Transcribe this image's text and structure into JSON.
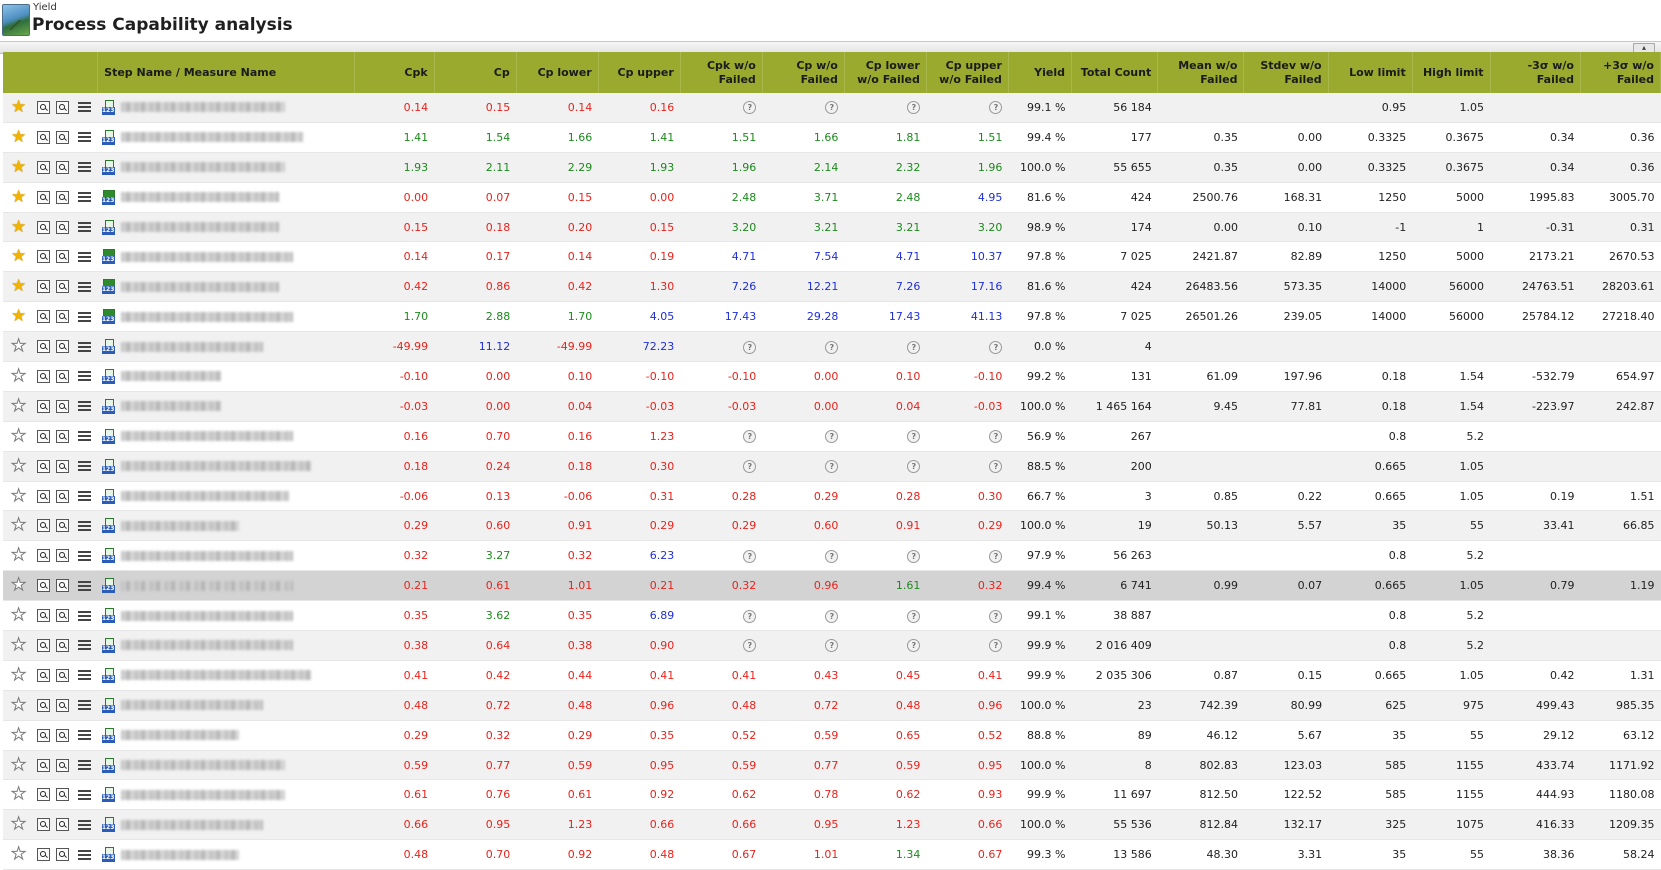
{
  "header": {
    "breadcrumb": "Yield",
    "title": "Process Capability analysis",
    "collapse_label": "▴"
  },
  "columns": [
    "",
    "Step Name / Measure Name",
    "Cpk",
    "Cp",
    "Cp lower",
    "Cp upper",
    "Cpk w/o Failed",
    "Cp w/o Failed",
    "Cp lower w/o Failed",
    "Cp upper w/o Failed",
    "Yield",
    "Total Count",
    "Mean w/o Failed",
    "Stdev w/o Failed",
    "Low limit",
    "High limit",
    "-3σ w/o Failed",
    "+3σ w/o Failed"
  ],
  "colors": {
    "red": "#e8231c",
    "green": "#1c8a1c",
    "blue": "#1f2fd6",
    "header_bg": "#9aaa2e"
  },
  "rows": [
    {
      "fav": true,
      "type": "num",
      "w": 164,
      "cells": [
        "0.14",
        "0.15",
        "0.14",
        "0.16",
        "?",
        "?",
        "?",
        "?",
        "99.1 %",
        "56 184",
        "",
        "",
        "0.95",
        "1.05",
        "",
        ""
      ],
      "c": "rrrr????kkkkkkkk"
    },
    {
      "fav": true,
      "type": "num",
      "w": 182,
      "cells": [
        "1.41",
        "1.54",
        "1.66",
        "1.41",
        "1.51",
        "1.66",
        "1.81",
        "1.51",
        "99.4 %",
        "177",
        "0.35",
        "0.00",
        "0.3325",
        "0.3675",
        "0.34",
        "0.36"
      ],
      "c": "ggggggggkkkkkkkk"
    },
    {
      "fav": true,
      "type": "num",
      "w": 164,
      "cells": [
        "1.93",
        "2.11",
        "2.29",
        "1.93",
        "1.96",
        "2.14",
        "2.32",
        "1.96",
        "100.0 %",
        "55 655",
        "0.35",
        "0.00",
        "0.3325",
        "0.3675",
        "0.34",
        "0.36"
      ],
      "c": "ggggggggkkkkkkkk"
    },
    {
      "fav": true,
      "type": "pf",
      "w": 158,
      "cells": [
        "0.00",
        "0.07",
        "0.15",
        "0.00",
        "2.48",
        "3.71",
        "2.48",
        "4.95",
        "81.6 %",
        "424",
        "2500.76",
        "168.31",
        "1250",
        "5000",
        "1995.83",
        "3005.70"
      ],
      "c": "rrrrgggbkkkkkkkk"
    },
    {
      "fav": true,
      "type": "num",
      "w": 158,
      "cells": [
        "0.15",
        "0.18",
        "0.20",
        "0.15",
        "3.20",
        "3.21",
        "3.21",
        "3.20",
        "98.9 %",
        "174",
        "0.00",
        "0.10",
        "-1",
        "1",
        "-0.31",
        "0.31"
      ],
      "c": "rrrrggggkkkkkkkk"
    },
    {
      "fav": true,
      "type": "pf",
      "w": 172,
      "cells": [
        "0.14",
        "0.17",
        "0.14",
        "0.19",
        "4.71",
        "7.54",
        "4.71",
        "10.37",
        "97.8 %",
        "7 025",
        "2421.87",
        "82.89",
        "1250",
        "5000",
        "2173.21",
        "2670.53"
      ],
      "c": "rrrrbbbbkkkkkkkk"
    },
    {
      "fav": true,
      "type": "pf",
      "w": 158,
      "cells": [
        "0.42",
        "0.86",
        "0.42",
        "1.30",
        "7.26",
        "12.21",
        "7.26",
        "17.16",
        "81.6 %",
        "424",
        "26483.56",
        "573.35",
        "14000",
        "56000",
        "24763.51",
        "28203.61"
      ],
      "c": "rrrrbbbbkkkkkkkk"
    },
    {
      "fav": true,
      "type": "pf",
      "w": 172,
      "cells": [
        "1.70",
        "2.88",
        "1.70",
        "4.05",
        "17.43",
        "29.28",
        "17.43",
        "41.13",
        "97.8 %",
        "7 025",
        "26501.26",
        "239.05",
        "14000",
        "56000",
        "25784.12",
        "27218.40"
      ],
      "c": "gggbbbbbkkkkkkkk"
    },
    {
      "fav": false,
      "type": "num",
      "w": 142,
      "cells": [
        "-49.99",
        "11.12",
        "-49.99",
        "72.23",
        "?",
        "?",
        "?",
        "?",
        "0.0 %",
        "4",
        "",
        "",
        "",
        "",
        "",
        ""
      ],
      "c": "rbrb????kkkkkkkk"
    },
    {
      "fav": false,
      "type": "num",
      "w": 100,
      "cells": [
        "-0.10",
        "0.00",
        "0.10",
        "-0.10",
        "-0.10",
        "0.00",
        "0.10",
        "-0.10",
        "99.2 %",
        "131",
        "61.09",
        "197.96",
        "0.18",
        "1.54",
        "-532.79",
        "654.97"
      ],
      "c": "rrrrrrrrkkkkkkkk"
    },
    {
      "fav": false,
      "type": "num",
      "w": 100,
      "cells": [
        "-0.03",
        "0.00",
        "0.04",
        "-0.03",
        "-0.03",
        "0.00",
        "0.04",
        "-0.03",
        "100.0 %",
        "1 465 164",
        "9.45",
        "77.81",
        "0.18",
        "1.54",
        "-223.97",
        "242.87"
      ],
      "c": "rrrrrrrrkkkkkkkk"
    },
    {
      "fav": false,
      "type": "num",
      "w": 172,
      "cells": [
        "0.16",
        "0.70",
        "0.16",
        "1.23",
        "?",
        "?",
        "?",
        "?",
        "56.9 %",
        "267",
        "",
        "",
        "0.8",
        "5.2",
        "",
        ""
      ],
      "c": "rrrr????kkkkkkkk"
    },
    {
      "fav": false,
      "type": "num",
      "w": 190,
      "cells": [
        "0.18",
        "0.24",
        "0.18",
        "0.30",
        "?",
        "?",
        "?",
        "?",
        "88.5 %",
        "200",
        "",
        "",
        "0.665",
        "1.05",
        "",
        ""
      ],
      "c": "rrrr????kkkkkkkk"
    },
    {
      "fav": false,
      "type": "num",
      "w": 168,
      "cells": [
        "-0.06",
        "0.13",
        "-0.06",
        "0.31",
        "0.28",
        "0.29",
        "0.28",
        "0.30",
        "66.7 %",
        "3",
        "0.85",
        "0.22",
        "0.665",
        "1.05",
        "0.19",
        "1.51"
      ],
      "c": "rrrrrrrrkkkkkkkk"
    },
    {
      "fav": false,
      "type": "num",
      "w": 118,
      "cells": [
        "0.29",
        "0.60",
        "0.91",
        "0.29",
        "0.29",
        "0.60",
        "0.91",
        "0.29",
        "100.0 %",
        "19",
        "50.13",
        "5.57",
        "35",
        "55",
        "33.41",
        "66.85"
      ],
      "c": "rrrrrrrrkkkkkkkk"
    },
    {
      "fav": false,
      "type": "num",
      "w": 172,
      "cells": [
        "0.32",
        "3.27",
        "0.32",
        "6.23",
        "?",
        "?",
        "?",
        "?",
        "97.9 %",
        "56 263",
        "",
        "",
        "0.8",
        "5.2",
        "",
        ""
      ],
      "c": "rgrb????kkkkkkkk"
    },
    {
      "fav": false,
      "type": "num",
      "w": 172,
      "sel": true,
      "cells": [
        "0.21",
        "0.61",
        "1.01",
        "0.21",
        "0.32",
        "0.96",
        "1.61",
        "0.32",
        "99.4 %",
        "6 741",
        "0.99",
        "0.07",
        "0.665",
        "1.05",
        "0.79",
        "1.19"
      ],
      "c": "rrrrrrgrkkkkkkkk"
    },
    {
      "fav": false,
      "type": "num",
      "w": 172,
      "cells": [
        "0.35",
        "3.62",
        "0.35",
        "6.89",
        "?",
        "?",
        "?",
        "?",
        "99.1 %",
        "38 887",
        "",
        "",
        "0.8",
        "5.2",
        "",
        ""
      ],
      "c": "rgrb????kkkkkkkk"
    },
    {
      "fav": false,
      "type": "num",
      "w": 172,
      "cells": [
        "0.38",
        "0.64",
        "0.38",
        "0.90",
        "?",
        "?",
        "?",
        "?",
        "99.9 %",
        "2 016 409",
        "",
        "",
        "0.8",
        "5.2",
        "",
        ""
      ],
      "c": "rrrr????kkkkkkkk"
    },
    {
      "fav": false,
      "type": "num",
      "w": 190,
      "cells": [
        "0.41",
        "0.42",
        "0.44",
        "0.41",
        "0.41",
        "0.43",
        "0.45",
        "0.41",
        "99.9 %",
        "2 035 306",
        "0.87",
        "0.15",
        "0.665",
        "1.05",
        "0.42",
        "1.31"
      ],
      "c": "rrrrrrrrkkkkkkkk"
    },
    {
      "fav": false,
      "type": "num",
      "w": 142,
      "cells": [
        "0.48",
        "0.72",
        "0.48",
        "0.96",
        "0.48",
        "0.72",
        "0.48",
        "0.96",
        "100.0 %",
        "23",
        "742.39",
        "80.99",
        "625",
        "975",
        "499.43",
        "985.35"
      ],
      "c": "rrrrrrrrkkkkkkkk"
    },
    {
      "fav": false,
      "type": "num",
      "w": 118,
      "cells": [
        "0.29",
        "0.32",
        "0.29",
        "0.35",
        "0.52",
        "0.59",
        "0.65",
        "0.52",
        "88.8 %",
        "89",
        "46.12",
        "5.67",
        "35",
        "55",
        "29.12",
        "63.12"
      ],
      "c": "rrrrrrrrkkkkkkkk"
    },
    {
      "fav": false,
      "type": "num",
      "w": 164,
      "cells": [
        "0.59",
        "0.77",
        "0.59",
        "0.95",
        "0.59",
        "0.77",
        "0.59",
        "0.95",
        "100.0 %",
        "8",
        "802.83",
        "123.03",
        "585",
        "1155",
        "433.74",
        "1171.92"
      ],
      "c": "rrrrrrrrkkkkkkkk"
    },
    {
      "fav": false,
      "type": "num",
      "w": 164,
      "cells": [
        "0.61",
        "0.76",
        "0.61",
        "0.92",
        "0.62",
        "0.78",
        "0.62",
        "0.93",
        "99.9 %",
        "11 697",
        "812.50",
        "122.52",
        "585",
        "1155",
        "444.93",
        "1180.08"
      ],
      "c": "rrrrrrrrkkkkkkkk"
    },
    {
      "fav": false,
      "type": "num",
      "w": 142,
      "cells": [
        "0.66",
        "0.95",
        "1.23",
        "0.66",
        "0.66",
        "0.95",
        "1.23",
        "0.66",
        "100.0 %",
        "55 536",
        "812.84",
        "132.17",
        "325",
        "1075",
        "416.33",
        "1209.35"
      ],
      "c": "rrrrrrrrkkkkkkkk"
    },
    {
      "fav": false,
      "type": "num",
      "w": 118,
      "cells": [
        "0.48",
        "0.70",
        "0.92",
        "0.48",
        "0.67",
        "1.01",
        "1.34",
        "0.67",
        "99.3 %",
        "13 586",
        "48.30",
        "3.31",
        "35",
        "55",
        "38.36",
        "58.24"
      ],
      "c": "rrrrrrgrkkkkkkkk"
    }
  ]
}
